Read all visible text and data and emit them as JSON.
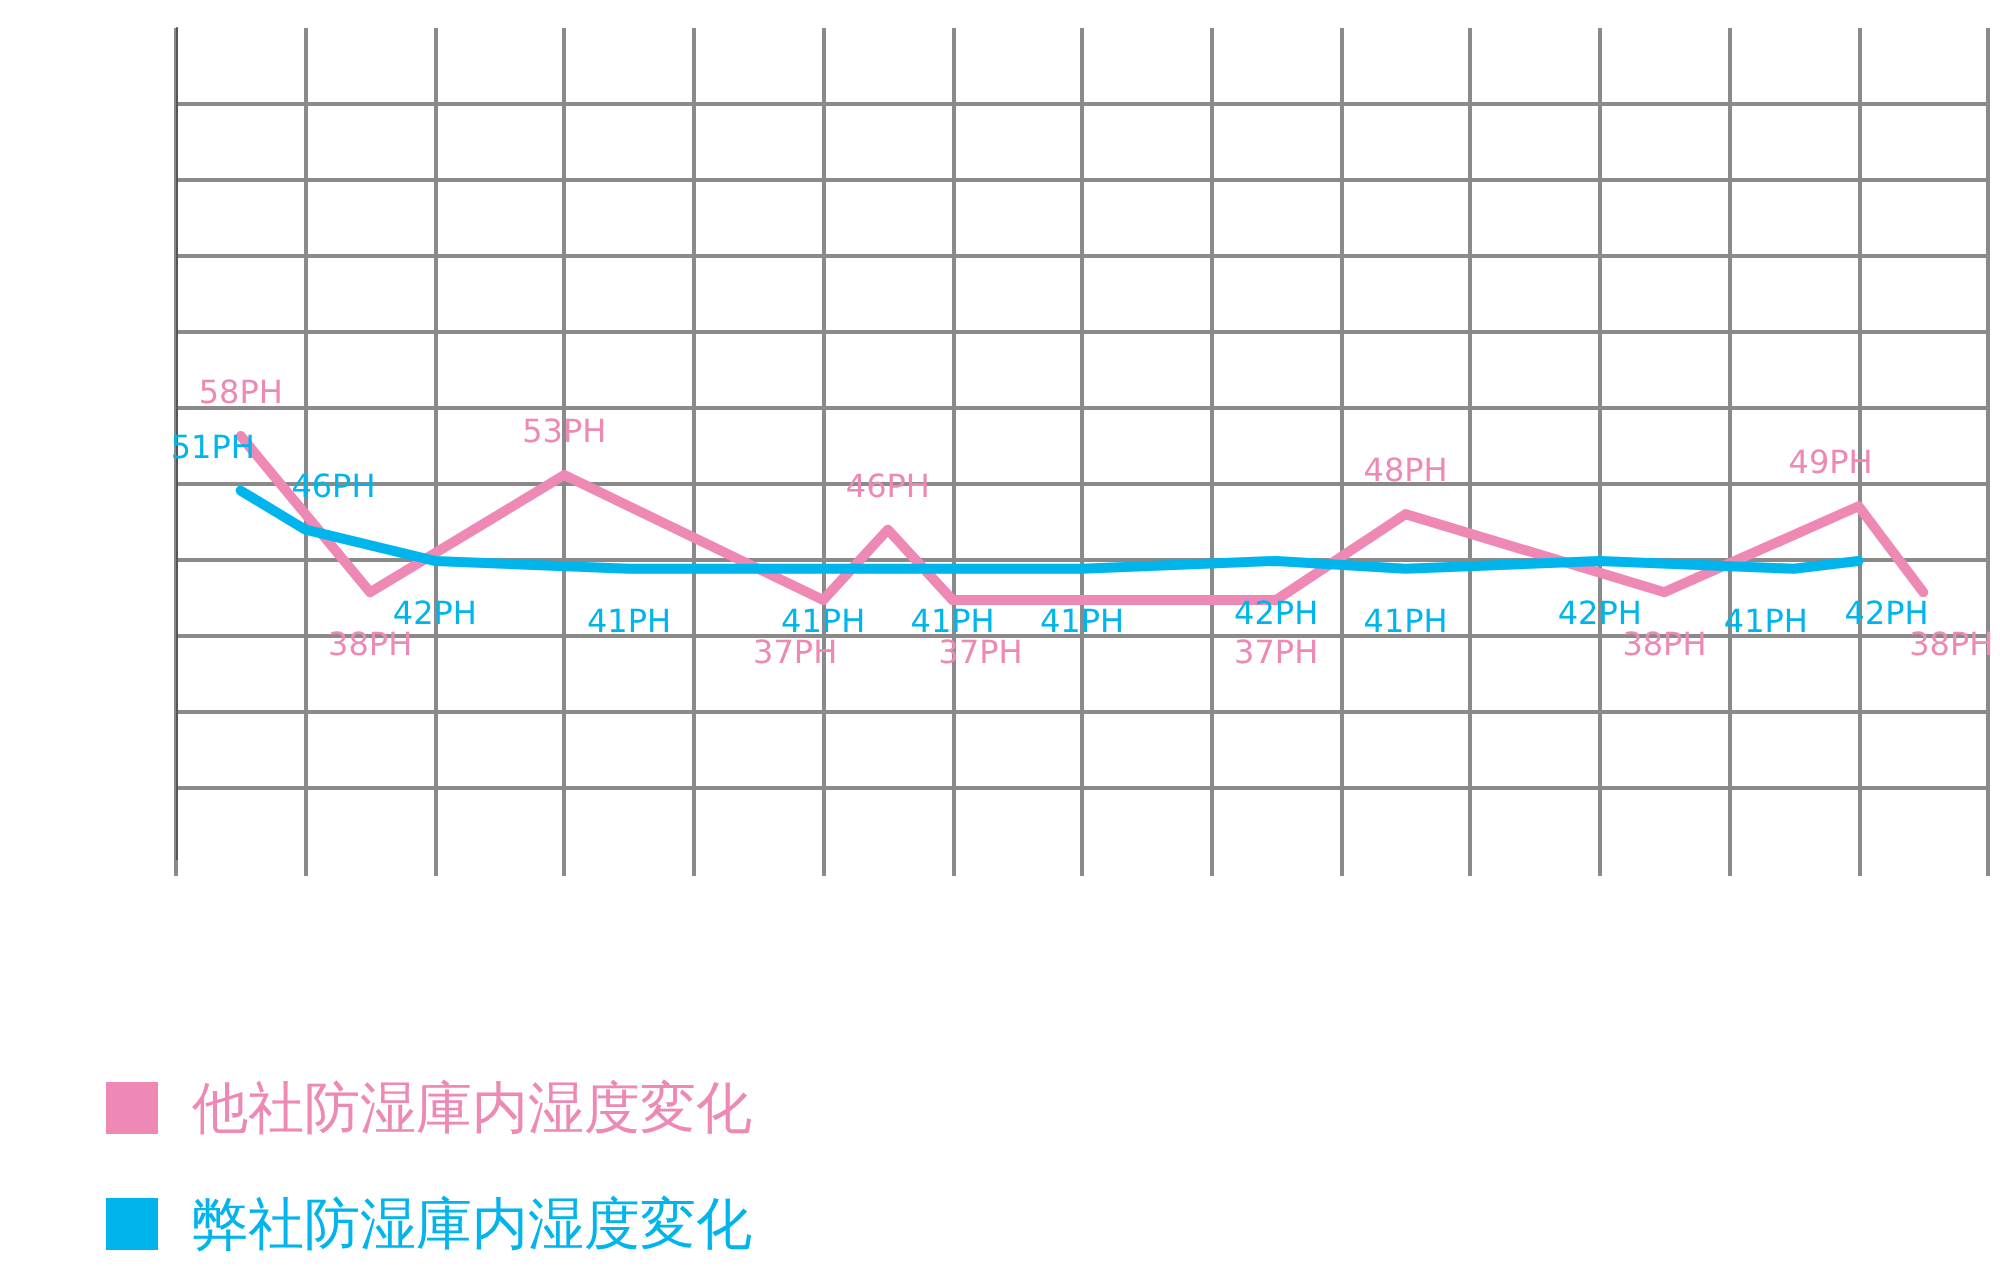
{
  "chart_data": {
    "type": "line",
    "categories": [
      null,
      null,
      null,
      null,
      null,
      null,
      null,
      null,
      null,
      null,
      null,
      null,
      null,
      null,
      null,
      null,
      null,
      null,
      null,
      null,
      null,
      null,
      null,
      null,
      null,
      null,
      null,
      null,
      null
    ],
    "grid": true,
    "legend": "bottom left",
    "marker": "none",
    "line_style": "solid",
    "series": [
      {
        "name": "他社防湿庫内湿度変化",
        "color": "#ee88b5",
        "values": [
          null,
          58,
          null,
          38,
          null,
          null,
          53,
          null,
          null,
          null,
          37,
          46,
          37,
          null,
          null,
          null,
          null,
          37,
          null,
          48,
          null,
          null,
          null,
          38,
          null,
          null,
          49,
          38,
          null
        ],
        "value_labels": [
          null,
          "58PH",
          null,
          "38PH",
          null,
          null,
          "53PH",
          null,
          null,
          null,
          "37PH",
          "46PH",
          "37PH",
          null,
          null,
          null,
          null,
          "37PH",
          null,
          "48PH",
          null,
          null,
          null,
          "38PH",
          null,
          null,
          "49PH",
          "38PH",
          null
        ]
      },
      {
        "name": "弊社防湿庫内湿度変化",
        "color": "#00b5ec",
        "values": [
          null,
          51,
          46,
          null,
          42,
          null,
          null,
          41,
          null,
          null,
          41,
          null,
          41,
          null,
          41,
          null,
          null,
          42,
          null,
          41,
          null,
          null,
          42,
          null,
          null,
          41,
          42,
          null,
          null
        ],
        "value_labels": [
          null,
          "51PH",
          "46PH",
          null,
          "42PH",
          null,
          null,
          "41PH",
          null,
          null,
          "41PH",
          null,
          "41PH",
          null,
          "41PH",
          null,
          null,
          "42PH",
          null,
          "41PH",
          null,
          null,
          "42PH",
          null,
          null,
          "41PH",
          "42PH",
          null,
          null
        ]
      }
    ]
  }
}
